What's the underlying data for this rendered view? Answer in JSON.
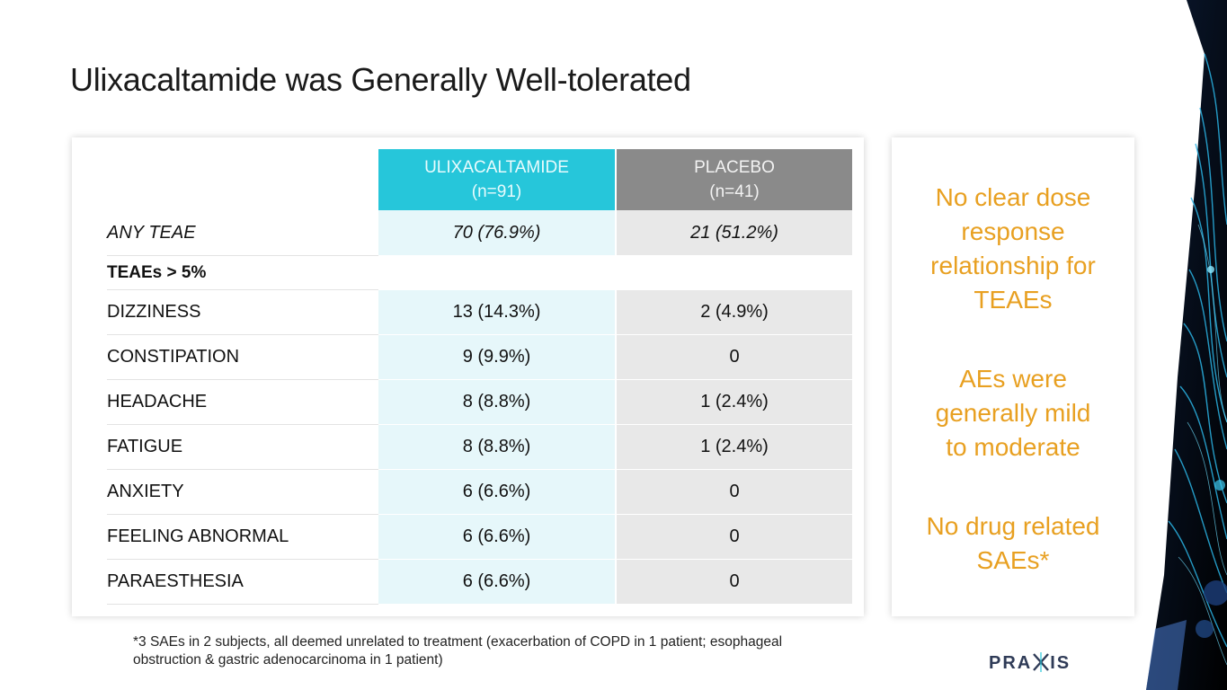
{
  "slide": {
    "title": "Ulixacaltamide was Generally Well-tolerated"
  },
  "table": {
    "header_ulix_line1": "ULIXACALTAMIDE",
    "header_ulix_line2": "(n=91)",
    "header_placebo_line1": "PLACEBO",
    "header_placebo_line2": "(n=41)",
    "any_teae": {
      "label": "ANY TEAE",
      "ulix": "70 (76.9%)",
      "placebo": "21 (51.2%)"
    },
    "section_label": "TEAEs > 5%",
    "rows": [
      {
        "label": "DIZZINESS",
        "ulix": "13 (14.3%)",
        "placebo": "2 (4.9%)"
      },
      {
        "label": "CONSTIPATION",
        "ulix": "9 (9.9%)",
        "placebo": "0"
      },
      {
        "label": "HEADACHE",
        "ulix": "8 (8.8%)",
        "placebo": "1 (2.4%)"
      },
      {
        "label": "FATIGUE",
        "ulix": "8 (8.8%)",
        "placebo": "1 (2.4%)"
      },
      {
        "label": "ANXIETY",
        "ulix": "6 (6.6%)",
        "placebo": "0"
      },
      {
        "label": "FEELING ABNORMAL",
        "ulix": "6 (6.6%)",
        "placebo": "0"
      },
      {
        "label": "PARAESTHESIA",
        "ulix": "6 (6.6%)",
        "placebo": "0"
      }
    ]
  },
  "sidebar": {
    "statement_1": [
      "No clear dose",
      "response",
      "relationship for",
      "TEAEs"
    ],
    "statement_2": [
      "AEs were",
      "generally mild",
      "to moderate"
    ],
    "statement_3": [
      "No drug related",
      "SAEs*"
    ]
  },
  "footnote": {
    "line1": "*3 SAEs in 2 subjects, all deemed unrelated to treatment (exacerbation of COPD in 1 patient; esophageal",
    "line2": "obstruction & gastric adenocarcinoma in 1 patient)"
  },
  "logo": {
    "text_left": "PRA",
    "text_right": "IS"
  },
  "colors": {
    "accent_cyan": "#26c6da",
    "placebo_gray": "#8a8a8a",
    "orange": "#e8a021"
  }
}
